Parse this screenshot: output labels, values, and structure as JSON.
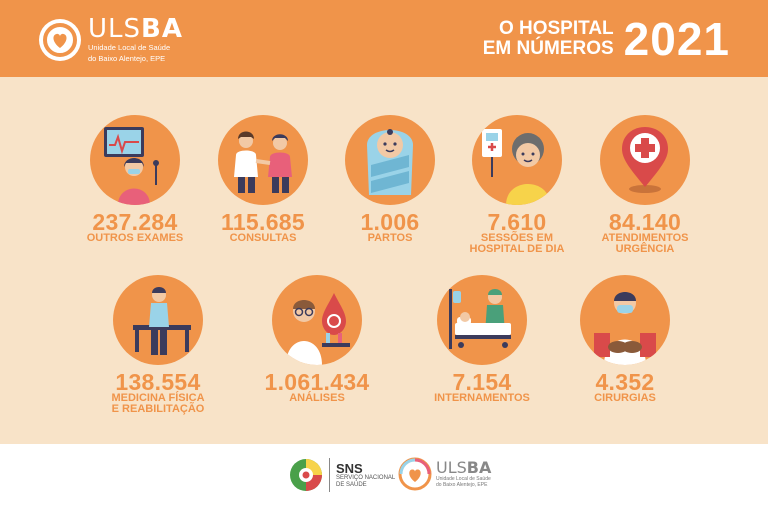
{
  "header": {
    "logo": {
      "name_light": "ULS",
      "name_bold": "BA",
      "subtitle_line1": "Unidade Local de Saúde",
      "subtitle_line2": "do Baixo Alentejo, EPE"
    },
    "headline_line1": "O HOSPITAL",
    "headline_line2": "EM NÚMEROS",
    "year": "2021"
  },
  "stats": [
    {
      "value": "237.284",
      "label": "OUTROS EXAMES",
      "icon": "exam-monitor-icon"
    },
    {
      "value": "115.685",
      "label": "CONSULTAS",
      "icon": "consultation-icon"
    },
    {
      "value": "1.006",
      "label": "PARTOS",
      "icon": "baby-icon"
    },
    {
      "value": "7.610",
      "label": "SESSÕES EM\nHOSPITAL DE DIA",
      "icon": "day-hospital-icon"
    },
    {
      "value": "84.140",
      "label": "ATENDIMENTOS\nURGÊNCIA",
      "icon": "emergency-pin-icon"
    },
    {
      "value": "138.554",
      "label": "MEDICINA FÍSICA\nE REABILITAÇÃO",
      "icon": "rehabilitation-icon"
    },
    {
      "value": "1.061.434",
      "label": "ANÁLISES",
      "icon": "lab-analysis-icon"
    },
    {
      "value": "7.154",
      "label": "INTERNAMENTOS",
      "icon": "hospital-bed-icon"
    },
    {
      "value": "4.352",
      "label": "CIRURGIAS",
      "icon": "surgeon-icon"
    }
  ],
  "footer": {
    "sns": {
      "name": "SNS",
      "sub": "SERVIÇO NACIONAL\nDE SAÚDE"
    },
    "ulsba": {
      "name_light": "ULS",
      "name_bold": "BA",
      "sub": "Unidade Local de Saúde\ndo Baixo Alentejo, EPE"
    }
  },
  "colors": {
    "orange": "#f0944a",
    "background": "#f8e3c8",
    "white": "#ffffff"
  }
}
